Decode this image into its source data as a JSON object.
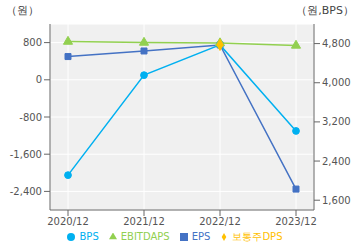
{
  "chart_data": {
    "type": "line",
    "y_label": "（원）",
    "y2_label": "（원,BPS）",
    "categories": [
      "2020/12",
      "2021/12",
      "2022/12",
      "2023/12"
    ],
    "series": [
      {
        "name": "EPS",
        "color": "#4472c4",
        "values": [
          500,
          620,
          750,
          -2350
        ],
        "marker": "square",
        "line_style": "solid"
      },
      {
        "name": "BPS",
        "color": "#00b0f0",
        "values": [
          -2050,
          100,
          750,
          -1100
        ],
        "marker": "circle",
        "line_style": "solid"
      },
      {
        "name": "EBITDAPS",
        "color": "#92d050",
        "values": [
          4840,
          4820,
          4810,
          4760
        ],
        "axis": "y2",
        "marker": "triangle",
        "line_style": "solid"
      },
      {
        "name": "보통주DPS",
        "color": "#ffc000",
        "values": [
          null,
          null,
          750,
          null
        ],
        "marker": "diamond",
        "line_style": "none"
      }
    ],
    "ylim": [
      -2800,
      1200
    ],
    "yticks": [
      {
        "value": -2400,
        "label": "-2,400"
      },
      {
        "value": -1600,
        "label": "-1,600"
      },
      {
        "value": -800,
        "label": "-800"
      },
      0,
      800
    ],
    "y2lim": [
      1400,
      5200
    ],
    "y2ticks": [
      {
        "value": 1600,
        "label": "1,600"
      },
      {
        "value": 2400,
        "label": "2,400"
      },
      {
        "value": 3200,
        "label": "3,200"
      },
      {
        "value": 4000,
        "label": "4,000"
      },
      {
        "value": 4800,
        "label": "4,800"
      }
    ],
    "grid": true,
    "legend": "bottom"
  }
}
